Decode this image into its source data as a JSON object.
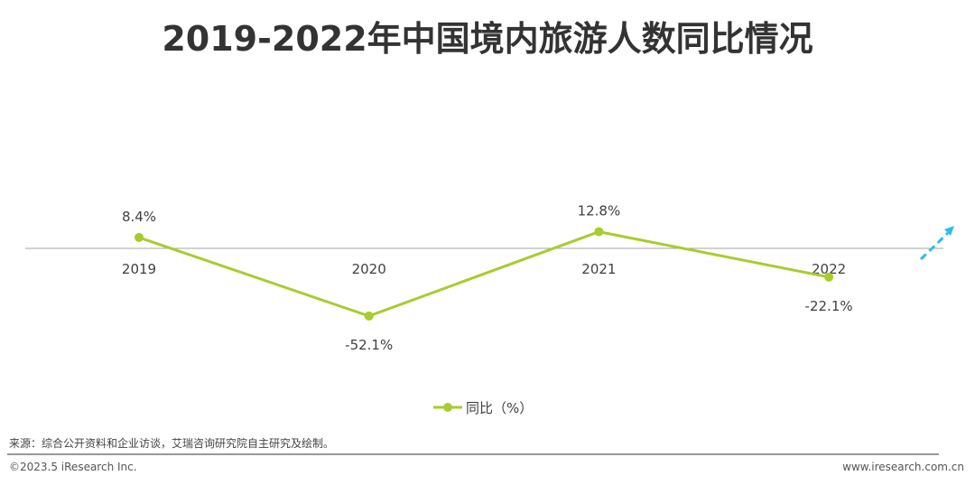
{
  "title": "2019-2022年中国境内旅游人数同比情况",
  "chart_data": {
    "type": "line",
    "title": "2019-2022年中国境内旅游人数同比情况",
    "categories": [
      "2019",
      "2020",
      "2021",
      "2022"
    ],
    "series": [
      {
        "name": "同比（%）",
        "values": [
          8.4,
          -52.1,
          12.8,
          -22.1
        ]
      }
    ],
    "data_labels": [
      "8.4%",
      "-52.1%",
      "12.8%",
      "-22.1%"
    ],
    "grid": false,
    "legend": "bottom",
    "colors": {
      "series": "#A8CC2E",
      "axis": "#A6A6A6",
      "arrow": "#2BBDEB"
    }
  },
  "footer": {
    "source": "来源：综合公开资料和企业访谈，艾瑞咨询研究院自主研究及绘制。",
    "copyright": "©2023.5 iResearch Inc.",
    "website": "www.iresearch.com.cn"
  }
}
